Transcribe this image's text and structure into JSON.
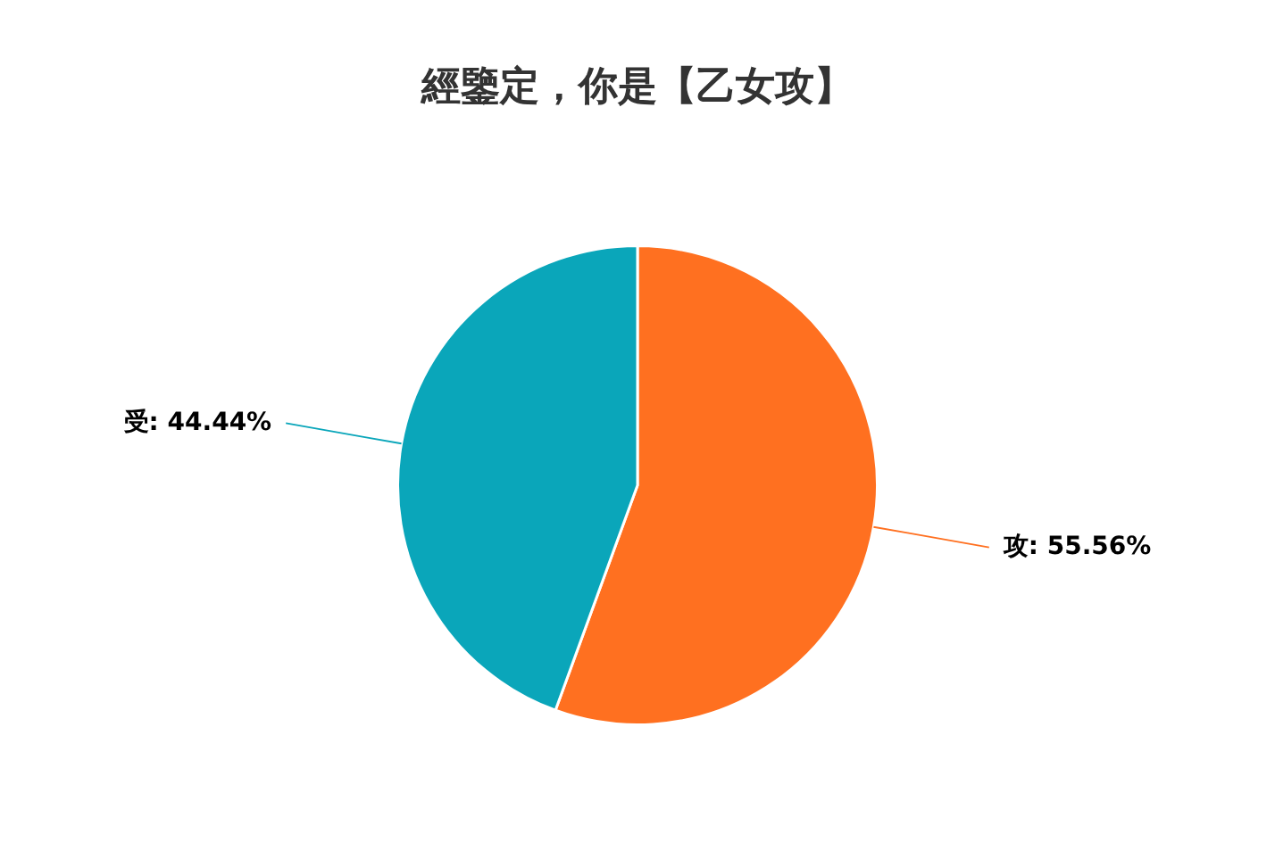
{
  "chart_data": {
    "type": "pie",
    "title": "經鑒定，你是【乙女攻】",
    "categories": [
      "攻",
      "受"
    ],
    "values": [
      55.56,
      44.44
    ],
    "colors": [
      "#ff7020",
      "#0aa6ba"
    ],
    "value_labels": [
      "55.56%",
      "44.44%"
    ],
    "legend": false
  }
}
